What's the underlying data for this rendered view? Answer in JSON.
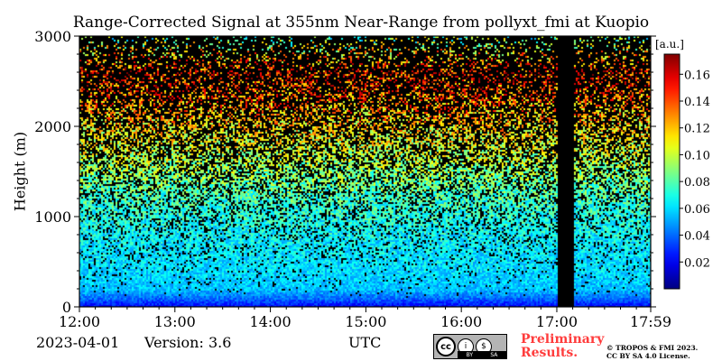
{
  "chart_data": {
    "type": "heatmap",
    "title": "Range-Corrected Signal at 355nm Near-Range from pollyxt_fmi at Kuopio",
    "xlabel": "UTC",
    "ylabel": "Height (m)",
    "x_ticks": [
      "12:00",
      "13:00",
      "14:00",
      "15:00",
      "16:00",
      "17:00",
      "17:59"
    ],
    "y_ticks": [
      "0",
      "1000",
      "2000",
      "3000"
    ],
    "xlim": [
      "12:00",
      "17:59"
    ],
    "ylim": [
      0,
      3000
    ],
    "colorbar": {
      "unit": "[a.u.]",
      "ticks": [
        "0.02",
        "0.04",
        "0.06",
        "0.08",
        "0.10",
        "0.12",
        "0.14",
        "0.16"
      ],
      "range": [
        0,
        0.175
      ],
      "colormap": "jet"
    },
    "signal_profile": {
      "height_m": [
        0,
        100,
        200,
        400,
        600,
        800,
        1000,
        1200,
        1400,
        1600,
        1800,
        2000,
        2200,
        2400,
        2600,
        2800,
        3000
      ],
      "typical_value": [
        0.02,
        0.04,
        0.055,
        0.06,
        0.062,
        0.065,
        0.07,
        0.075,
        0.085,
        0.095,
        0.105,
        0.115,
        0.125,
        0.14,
        0.15,
        0.12,
        0.08
      ],
      "noise_fraction": [
        0.0,
        0.0,
        0.05,
        0.1,
        0.15,
        0.2,
        0.25,
        0.3,
        0.35,
        0.45,
        0.5,
        0.55,
        0.6,
        0.65,
        0.7,
        0.8,
        0.85
      ]
    },
    "data_gap": {
      "start": "17:00",
      "end": "17:10"
    },
    "grid": false
  },
  "footer": {
    "date": "2023-04-01",
    "version": "Version: 3.6",
    "xlabel": "UTC",
    "license_badge": {
      "symbols": [
        "cc",
        "i",
        "$"
      ],
      "labels": [
        "BY",
        "SA"
      ]
    },
    "preliminary": "Preliminary\nResults.",
    "copyright_line1": "© TROPOS & FMI 2023.",
    "copyright_line2": "CC BY SA 4.0 License."
  },
  "colors": {
    "colormap": [
      "#00007f",
      "#0000ff",
      "#007fff",
      "#00ffff",
      "#7fff7f",
      "#ffff00",
      "#ff7f00",
      "#ff0000",
      "#7f0000"
    ],
    "no_data": "#000000",
    "preliminary": "#ff3c3c"
  }
}
